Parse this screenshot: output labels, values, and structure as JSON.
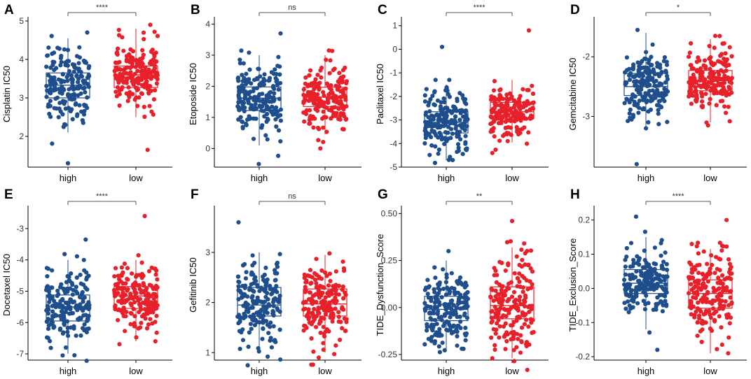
{
  "colors": {
    "high": "#1f4e8c",
    "low": "#e8202a",
    "axis": "#000000"
  },
  "chart_data": [
    {
      "type": "box_jitter",
      "panel_letter": "A",
      "ylabel": "Cisplatin IC50",
      "categories": [
        "high",
        "low"
      ],
      "ylim": [
        1.2,
        5.0
      ],
      "yticks": [
        2,
        3,
        4,
        5
      ],
      "significance": "****",
      "boxes": [
        {
          "group": "high",
          "q1": 3.0,
          "median": 3.33,
          "q3": 3.65,
          "whisker_low": 2.1,
          "whisker_high": 4.55,
          "ymin_points": 1.3,
          "ymax_points": 4.7
        },
        {
          "group": "low",
          "q1": 3.27,
          "median": 3.6,
          "q3": 3.83,
          "whisker_low": 2.5,
          "whisker_high": 4.8,
          "ymin_points": 1.65,
          "ymax_points": 4.9
        }
      ]
    },
    {
      "type": "box_jitter",
      "panel_letter": "B",
      "ylabel": "Etoposide IC50",
      "categories": [
        "high",
        "low"
      ],
      "ylim": [
        -0.6,
        4.1
      ],
      "yticks": [
        0,
        1,
        2,
        3,
        4
      ],
      "significance": "ns",
      "boxes": [
        {
          "group": "high",
          "q1": 1.22,
          "median": 1.62,
          "q3": 1.98,
          "whisker_low": 0.1,
          "whisker_high": 3.0,
          "ymin_points": -0.5,
          "ymax_points": 3.7
        },
        {
          "group": "low",
          "q1": 1.35,
          "median": 1.65,
          "q3": 1.97,
          "whisker_low": 0.45,
          "whisker_high": 3.0,
          "ymin_points": 0.0,
          "ymax_points": 3.15
        }
      ]
    },
    {
      "type": "box_jitter",
      "panel_letter": "C",
      "ylabel": "Paclitaxel IC50",
      "categories": [
        "high",
        "low"
      ],
      "ylim": [
        -5,
        1.2
      ],
      "yticks": [
        -5,
        -4,
        -3,
        -2,
        -1,
        0,
        1
      ],
      "significance": "****",
      "boxes": [
        {
          "group": "high",
          "q1": -3.55,
          "median": -3.1,
          "q3": -2.65,
          "whisker_low": -4.7,
          "whisker_high": -1.5,
          "ymin_points": -4.7,
          "ymax_points": 0.1
        },
        {
          "group": "low",
          "q1": -2.95,
          "median": -2.65,
          "q3": -2.25,
          "whisker_low": -3.95,
          "whisker_high": -1.3,
          "ymin_points": -4.4,
          "ymax_points": 0.8
        }
      ]
    },
    {
      "type": "box_jitter",
      "panel_letter": "D",
      "ylabel": "Gemcitabine IC50",
      "categories": [
        "high",
        "low"
      ],
      "ylim": [
        -3.85,
        -1.4
      ],
      "yticks": [
        -3,
        -2
      ],
      "significance": "*",
      "boxes": [
        {
          "group": "high",
          "q1": -2.65,
          "median": -2.5,
          "q3": -2.28,
          "whisker_low": -3.2,
          "whisker_high": -1.6,
          "ymin_points": -3.8,
          "ymax_points": -1.55
        },
        {
          "group": "low",
          "q1": -2.57,
          "median": -2.4,
          "q3": -2.23,
          "whisker_low": -3.1,
          "whisker_high": -1.7,
          "ymin_points": -3.15,
          "ymax_points": -1.65
        }
      ]
    },
    {
      "type": "box_jitter",
      "panel_letter": "E",
      "ylabel": "Docetaxel IC50",
      "categories": [
        "high",
        "low"
      ],
      "ylim": [
        -7.2,
        -2.4
      ],
      "yticks": [
        -7,
        -6,
        -5,
        -4,
        -3
      ],
      "significance": "****",
      "boxes": [
        {
          "group": "high",
          "q1": -5.95,
          "median": -5.5,
          "q3": -5.12,
          "whisker_low": -7.0,
          "whisker_high": -4.0,
          "ymin_points": -7.05,
          "ymax_points": -3.35
        },
        {
          "group": "low",
          "q1": -5.55,
          "median": -5.15,
          "q3": -4.85,
          "whisker_low": -6.6,
          "whisker_high": -4.0,
          "ymin_points": -6.6,
          "ymax_points": -2.6
        }
      ]
    },
    {
      "type": "box_jitter",
      "panel_letter": "F",
      "ylabel": "Gefitinib IC50",
      "categories": [
        "high",
        "low"
      ],
      "ylim": [
        0.85,
        3.85
      ],
      "yticks": [
        1,
        2,
        3
      ],
      "significance": "ns",
      "boxes": [
        {
          "group": "high",
          "q1": 1.73,
          "median": 1.95,
          "q3": 2.3,
          "whisker_low": 1.0,
          "whisker_high": 3.0,
          "ymin_points": 0.92,
          "ymax_points": 3.6
        },
        {
          "group": "low",
          "q1": 1.73,
          "median": 1.97,
          "q3": 2.27,
          "whisker_low": 1.0,
          "whisker_high": 2.95,
          "ymin_points": 0.9,
          "ymax_points": 2.98
        }
      ]
    },
    {
      "type": "box_jitter",
      "panel_letter": "G",
      "ylabel": "TIDE_Dysfunction_Score",
      "categories": [
        "high",
        "low"
      ],
      "ylim": [
        -0.28,
        0.52
      ],
      "yticks": [
        -0.25,
        0.0,
        0.25,
        0.5
      ],
      "significance": "**",
      "boxes": [
        {
          "group": "high",
          "q1": -0.07,
          "median": -0.01,
          "q3": 0.06,
          "whisker_low": -0.22,
          "whisker_high": 0.25,
          "ymin_points": -0.22,
          "ymax_points": 0.3
        },
        {
          "group": "low",
          "q1": -0.06,
          "median": 0.01,
          "q3": 0.11,
          "whisker_low": -0.27,
          "whisker_high": 0.32,
          "ymin_points": -0.27,
          "ymax_points": 0.46
        }
      ]
    },
    {
      "type": "box_jitter",
      "panel_letter": "H",
      "ylabel": "TIDE_Exclusion_Score",
      "categories": [
        "high",
        "low"
      ],
      "ylim": [
        -0.21,
        0.23
      ],
      "yticks": [
        -0.2,
        -0.1,
        0.0,
        0.1,
        0.2
      ],
      "significance": "****",
      "boxes": [
        {
          "group": "high",
          "q1": -0.015,
          "median": 0.015,
          "q3": 0.055,
          "whisker_low": -0.12,
          "whisker_high": 0.15,
          "ymin_points": -0.18,
          "ymax_points": 0.21
        },
        {
          "group": "low",
          "q1": -0.058,
          "median": -0.015,
          "q3": 0.025,
          "whisker_low": -0.19,
          "whisker_high": 0.115,
          "ymin_points": -0.19,
          "ymax_points": 0.2
        }
      ]
    }
  ]
}
